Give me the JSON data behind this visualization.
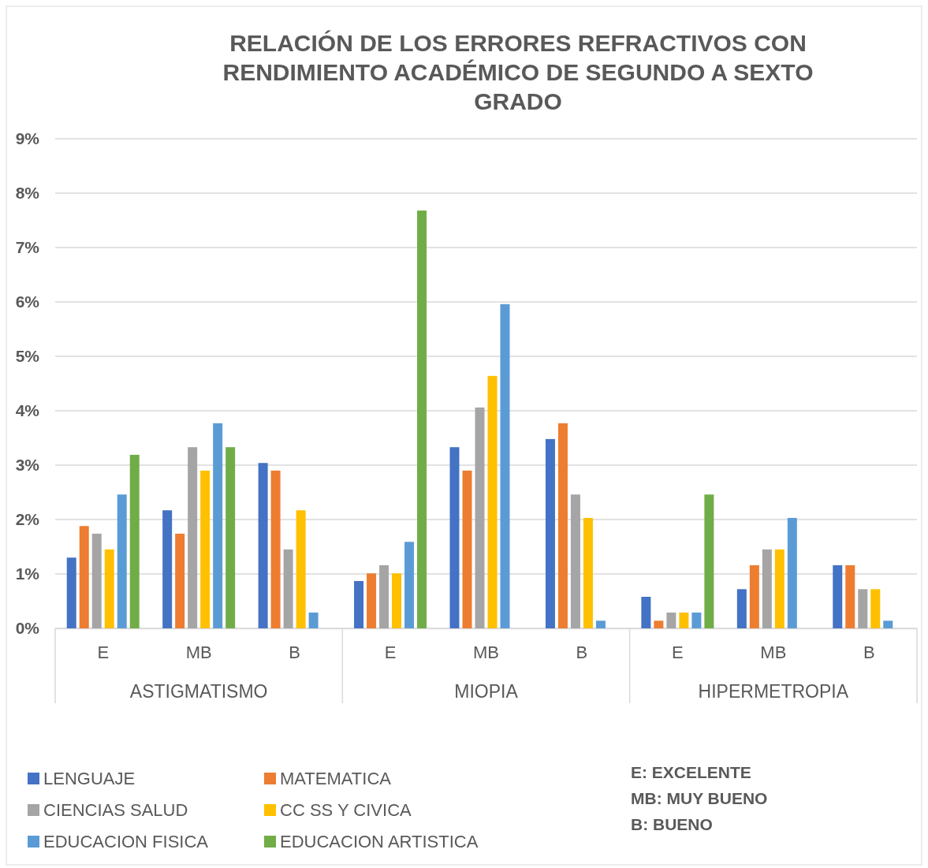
{
  "chart_data": {
    "type": "bar",
    "title": "RELACIÓN DE LOS ERRORES REFRACTIVOS CON RENDIMIENTO ACADÉMICO DE SEGUNDO A SEXTO GRADO",
    "categories": [
      "E",
      "MB",
      "B",
      "E",
      "MB",
      "B",
      "E",
      "MB",
      "B"
    ],
    "series": [
      {
        "name": "LENGUAJE",
        "color": "#4472c4",
        "values": [
          1.3,
          2.17,
          3.04,
          0.87,
          3.33,
          3.48,
          0.58,
          0.72,
          1.16
        ]
      },
      {
        "name": "MATEMATICA",
        "color": "#ed7d31",
        "values": [
          1.88,
          1.74,
          2.9,
          1.01,
          2.9,
          3.77,
          0.14,
          1.16,
          1.16
        ]
      },
      {
        "name": "CIENCIAS SALUD",
        "color": "#a5a5a5",
        "values": [
          1.74,
          3.33,
          1.45,
          1.16,
          4.06,
          2.46,
          0.29,
          1.45,
          0.72
        ]
      },
      {
        "name": "CC SS Y CIVICA",
        "color": "#ffc000",
        "values": [
          1.45,
          2.9,
          2.17,
          1.01,
          4.64,
          2.03,
          0.29,
          1.45,
          0.72
        ]
      },
      {
        "name": "EDUCACION FISICA",
        "color": "#5b9bd5",
        "values": [
          2.46,
          3.77,
          0.29,
          1.59,
          5.96,
          0.14,
          0.29,
          2.03,
          0.14
        ]
      },
      {
        "name": "EDUCACION ARTISTICA",
        "color": "#70ad47",
        "values": [
          3.19,
          3.33,
          null,
          7.68,
          null,
          null,
          2.46,
          null,
          null
        ]
      }
    ],
    "ylim": [
      0,
      9
    ],
    "yticks": [
      {
        "value": 0,
        "label": "0%"
      },
      {
        "value": 1,
        "label": "1%"
      },
      {
        "value": 2,
        "label": "2%"
      },
      {
        "value": 3,
        "label": "3%"
      },
      {
        "value": 4,
        "label": "4%"
      },
      {
        "value": 5,
        "label": "5%"
      },
      {
        "value": 6,
        "label": "6%"
      },
      {
        "value": 7,
        "label": "7%"
      },
      {
        "value": 8,
        "label": "8%"
      },
      {
        "value": 9,
        "label": "9%"
      }
    ],
    "grid": "y",
    "legend": "bottom",
    "annotations": [
      "ASTIGMATISMO",
      "MIOPIA",
      "HIPERMETROPIA",
      "E: EXCELENTE",
      "MB: MUY BUENO",
      "B: BUENO"
    ]
  }
}
